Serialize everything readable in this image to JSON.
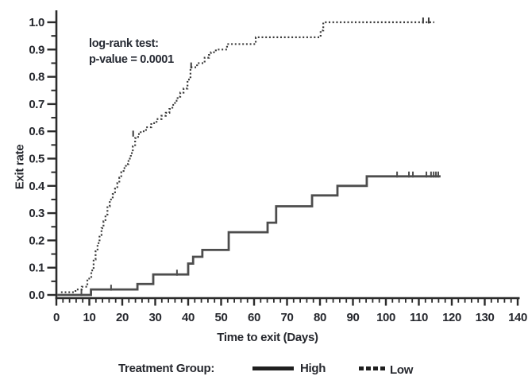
{
  "chart_data": {
    "type": "line",
    "subtype": "kaplan-meier-step",
    "title": "",
    "xlabel": "Time to exit (Days)",
    "ylabel": "Exit rate",
    "xlim": [
      0,
      140
    ],
    "ylim": [
      0,
      1.0
    ],
    "grid": false,
    "x_tick_values": [
      0,
      10,
      20,
      30,
      40,
      50,
      60,
      70,
      80,
      90,
      100,
      110,
      120,
      130,
      140
    ],
    "x_tick_labels": [
      "0",
      "10",
      "20",
      "30",
      "40",
      "50",
      "60",
      "70",
      "80",
      "90",
      "100",
      "110",
      "120",
      "130",
      "140"
    ],
    "x_minor_step": 2,
    "y_tick_values": [
      0,
      0.1,
      0.2,
      0.3,
      0.4,
      0.5,
      0.6,
      0.7,
      0.8,
      0.9,
      1.0
    ],
    "y_tick_labels": [
      "0.0",
      "0.1",
      "0.2",
      "0.3",
      "0.4",
      "0.5",
      "0.6",
      "0.7",
      "0.8",
      "0.9",
      "1.0"
    ],
    "y_minor_step": 0.05,
    "annotation": {
      "line1": "log-rank test:",
      "line2": "p-value = 0.0001"
    },
    "legend": {
      "title": "Treatment Group:",
      "position": "bottom",
      "entries": [
        {
          "label": "High",
          "line": "solid"
        },
        {
          "label": "Low",
          "line": "dotted"
        }
      ]
    },
    "series": [
      {
        "name": "High",
        "line": "solid",
        "color": "#4d4d4d",
        "start_day": 0.3,
        "start_rate": 0,
        "steps": [
          [
            10.5,
            0.02
          ],
          [
            24.6,
            0.04
          ],
          [
            29.4,
            0.075
          ],
          [
            40,
            0.115
          ],
          [
            41.5,
            0.14
          ],
          [
            44.3,
            0.165
          ],
          [
            52.3,
            0.23
          ],
          [
            64.1,
            0.265
          ],
          [
            66.7,
            0.325
          ],
          [
            77.6,
            0.365
          ],
          [
            85.3,
            0.4
          ],
          [
            94.2,
            0.435
          ]
        ],
        "end_day": 116.6,
        "final_rate": 0.435,
        "censors": [
          [
            7.6,
            0
          ],
          [
            16.6,
            0.02
          ],
          [
            36.6,
            0.075
          ],
          [
            103.4,
            0.435
          ],
          [
            107,
            0.435
          ],
          [
            108.2,
            0.435
          ],
          [
            112.3,
            0.435
          ],
          [
            113.7,
            0.435
          ],
          [
            114.5,
            0.435
          ],
          [
            115.2,
            0.435
          ],
          [
            115.9,
            0.435
          ]
        ]
      },
      {
        "name": "Low",
        "line": "dotted",
        "color": "#3a3a3a",
        "start_day": 1.4,
        "start_rate": 0.01,
        "steps": [
          [
            5.8,
            0.02
          ],
          [
            7.7,
            0.03
          ],
          [
            9.4,
            0.06
          ],
          [
            10.6,
            0.09
          ],
          [
            11.3,
            0.13
          ],
          [
            11.9,
            0.16
          ],
          [
            12.5,
            0.19
          ],
          [
            13.1,
            0.22
          ],
          [
            13.7,
            0.245
          ],
          [
            14.3,
            0.27
          ],
          [
            14.9,
            0.295
          ],
          [
            15.5,
            0.325
          ],
          [
            16.2,
            0.35
          ],
          [
            17.1,
            0.37
          ],
          [
            17.8,
            0.39
          ],
          [
            18.5,
            0.41
          ],
          [
            19.1,
            0.43
          ],
          [
            19.7,
            0.45
          ],
          [
            20.4,
            0.465
          ],
          [
            21.1,
            0.48
          ],
          [
            21.9,
            0.5
          ],
          [
            22.6,
            0.52
          ],
          [
            23.2,
            0.545
          ],
          [
            23.9,
            0.575
          ],
          [
            24.8,
            0.59
          ],
          [
            25.6,
            0.6
          ],
          [
            27.2,
            0.615
          ],
          [
            28.8,
            0.63
          ],
          [
            30.4,
            0.645
          ],
          [
            31.9,
            0.657
          ],
          [
            33.2,
            0.668
          ],
          [
            34.3,
            0.682
          ],
          [
            35.2,
            0.697
          ],
          [
            36,
            0.712
          ],
          [
            36.8,
            0.727
          ],
          [
            37.6,
            0.742
          ],
          [
            38.6,
            0.757
          ],
          [
            39.8,
            0.79
          ],
          [
            40.7,
            0.835
          ],
          [
            42.7,
            0.85
          ],
          [
            45,
            0.87
          ],
          [
            46.3,
            0.88
          ],
          [
            46.9,
            0.89
          ],
          [
            48.4,
            0.9
          ],
          [
            51.8,
            0.92
          ],
          [
            60.5,
            0.945
          ],
          [
            80.2,
            0.97
          ],
          [
            81,
            1.0
          ]
        ],
        "end_day": 114.7,
        "final_rate": 1.0,
        "censors": [
          [
            23.3,
            0.585
          ],
          [
            40.9,
            0.835
          ],
          [
            111.3,
            1.0
          ],
          [
            113,
            1.0
          ]
        ]
      }
    ]
  },
  "colors": {
    "background": "#ffffff",
    "text": "#26282e",
    "axis": "#2b2b2b",
    "legend_line": "#1f1f1f"
  }
}
